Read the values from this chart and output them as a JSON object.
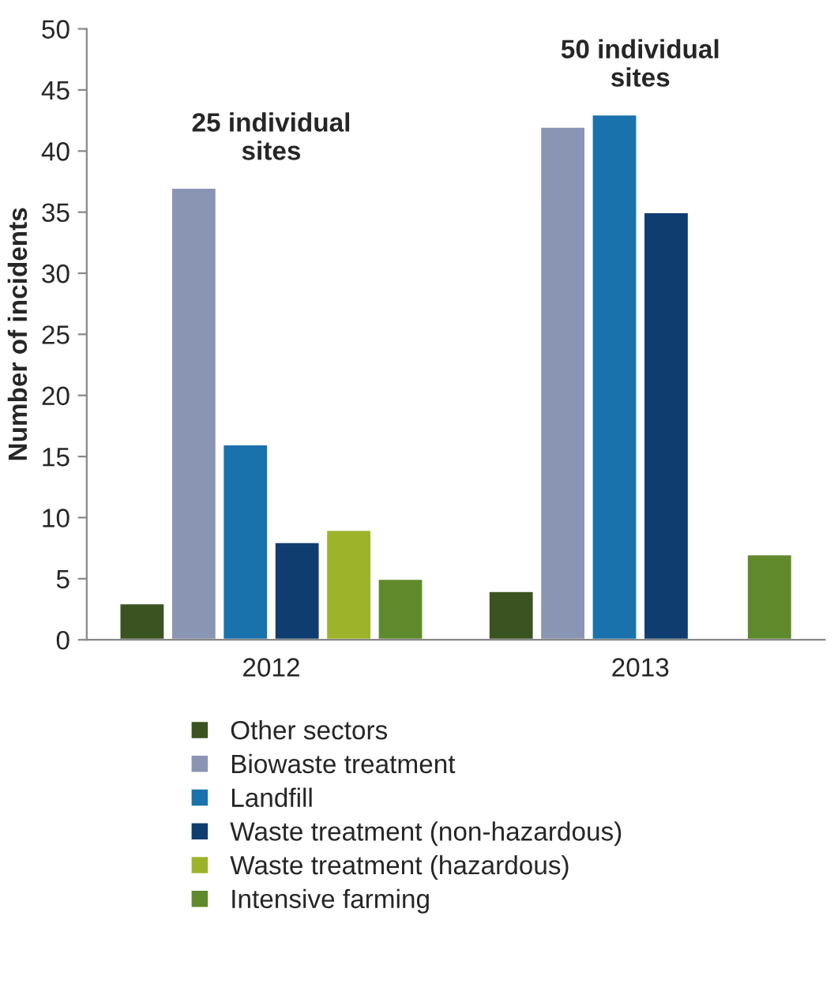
{
  "chart_data": {
    "type": "bar",
    "categories": [
      "2012",
      "2013"
    ],
    "ylabel": "Number of incidents",
    "ylim": [
      0,
      50
    ],
    "yticks": [
      0,
      5,
      10,
      15,
      20,
      25,
      30,
      35,
      40,
      45,
      50
    ],
    "grid": false,
    "legend": "bottom",
    "series": [
      {
        "name": "Other sectors",
        "color": "#3b5320",
        "values": [
          3,
          4
        ]
      },
      {
        "name": "Biowaste treatment",
        "color": "#8a95b3",
        "values": [
          37,
          42
        ]
      },
      {
        "name": "Landfill",
        "color": "#1a72ac",
        "values": [
          16,
          43
        ]
      },
      {
        "name": "Waste treatment (non-hazardous)",
        "color": "#0f3d70",
        "values": [
          8,
          35
        ]
      },
      {
        "name": "Waste treatment (hazardous)",
        "color": "#9db42a",
        "values": [
          9,
          null
        ]
      },
      {
        "name": "Intensive farming",
        "color": "#5f8a2c",
        "values": [
          5,
          7
        ]
      }
    ],
    "annotations": [
      "25 individual\nsites",
      "50 individual\nsites"
    ]
  }
}
